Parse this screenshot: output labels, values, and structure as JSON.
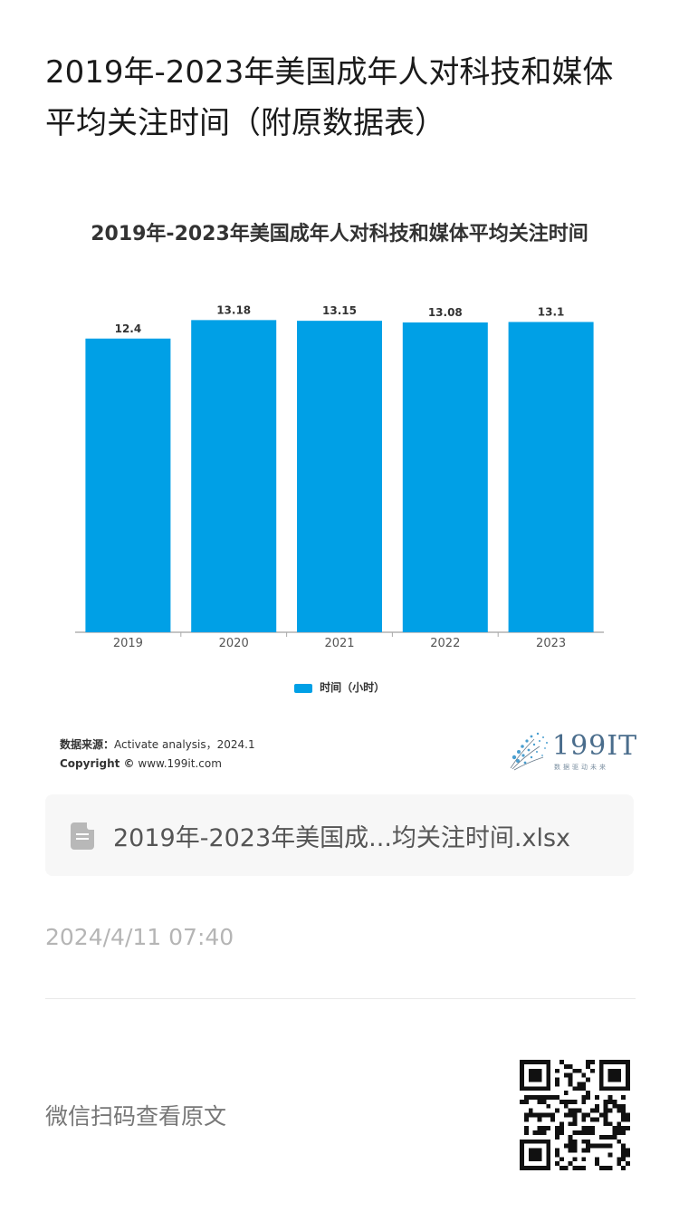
{
  "page": {
    "title": "2019年-2023年美国成年人对科技和媒体平均关注时间（附原数据表）"
  },
  "chart_data": {
    "type": "bar",
    "title": "2019年-2023年美国成年人对科技和媒体平均关注时间",
    "categories": [
      "2019",
      "2020",
      "2021",
      "2022",
      "2023"
    ],
    "series": [
      {
        "name": "时间（小时）",
        "values": [
          12.4,
          13.18,
          13.15,
          13.08,
          13.1
        ],
        "color": "#00a0e6"
      }
    ],
    "data_labels": [
      "12.4",
      "13.18",
      "13.15",
      "13.08",
      "13.1"
    ],
    "ylim": [
      0,
      13.5
    ],
    "grid": false,
    "legend_position": "bottom"
  },
  "source": {
    "label": "数据来源：",
    "text": "Activate analysis，2024.1",
    "copyright_label": "Copyright ©",
    "copyright_text": "www.199it.com"
  },
  "logo": {
    "text": "199IT",
    "subtitle": "数据驱动未来"
  },
  "attachment": {
    "file_name": "2019年-2023年美国成...均关注时间.xlsx",
    "icon": "spreadsheet-file-icon"
  },
  "meta": {
    "timestamp": "2024/4/11 07:40",
    "qr_caption": "微信扫码查看原文"
  }
}
